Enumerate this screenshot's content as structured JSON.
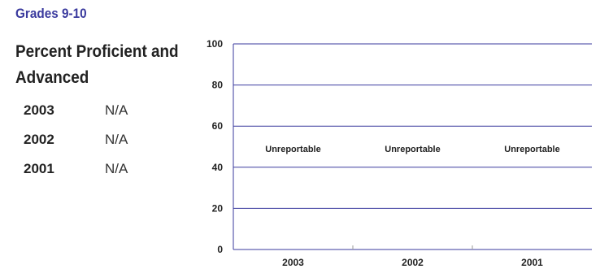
{
  "grade_heading": "Grades 9-10",
  "metric_title": "Percent Proficient and Advanced",
  "stats": [
    {
      "year": "2003",
      "value": "N/A"
    },
    {
      "year": "2002",
      "value": "N/A"
    },
    {
      "year": "2001",
      "value": "N/A"
    }
  ],
  "colors": {
    "heading": "#3a3a9e",
    "gridline": "#3a3a9e",
    "axis": "#3a3a9e"
  },
  "chart_data": {
    "type": "bar",
    "categories": [
      "2003",
      "2002",
      "2001"
    ],
    "values": [
      null,
      null,
      null
    ],
    "bar_labels": [
      "Unreportable",
      "Unreportable",
      "Unreportable"
    ],
    "yticks": [
      0,
      20,
      40,
      60,
      80,
      100
    ],
    "ylim": [
      0,
      100
    ],
    "title": "",
    "xlabel": "",
    "ylabel": "",
    "grid": true
  }
}
